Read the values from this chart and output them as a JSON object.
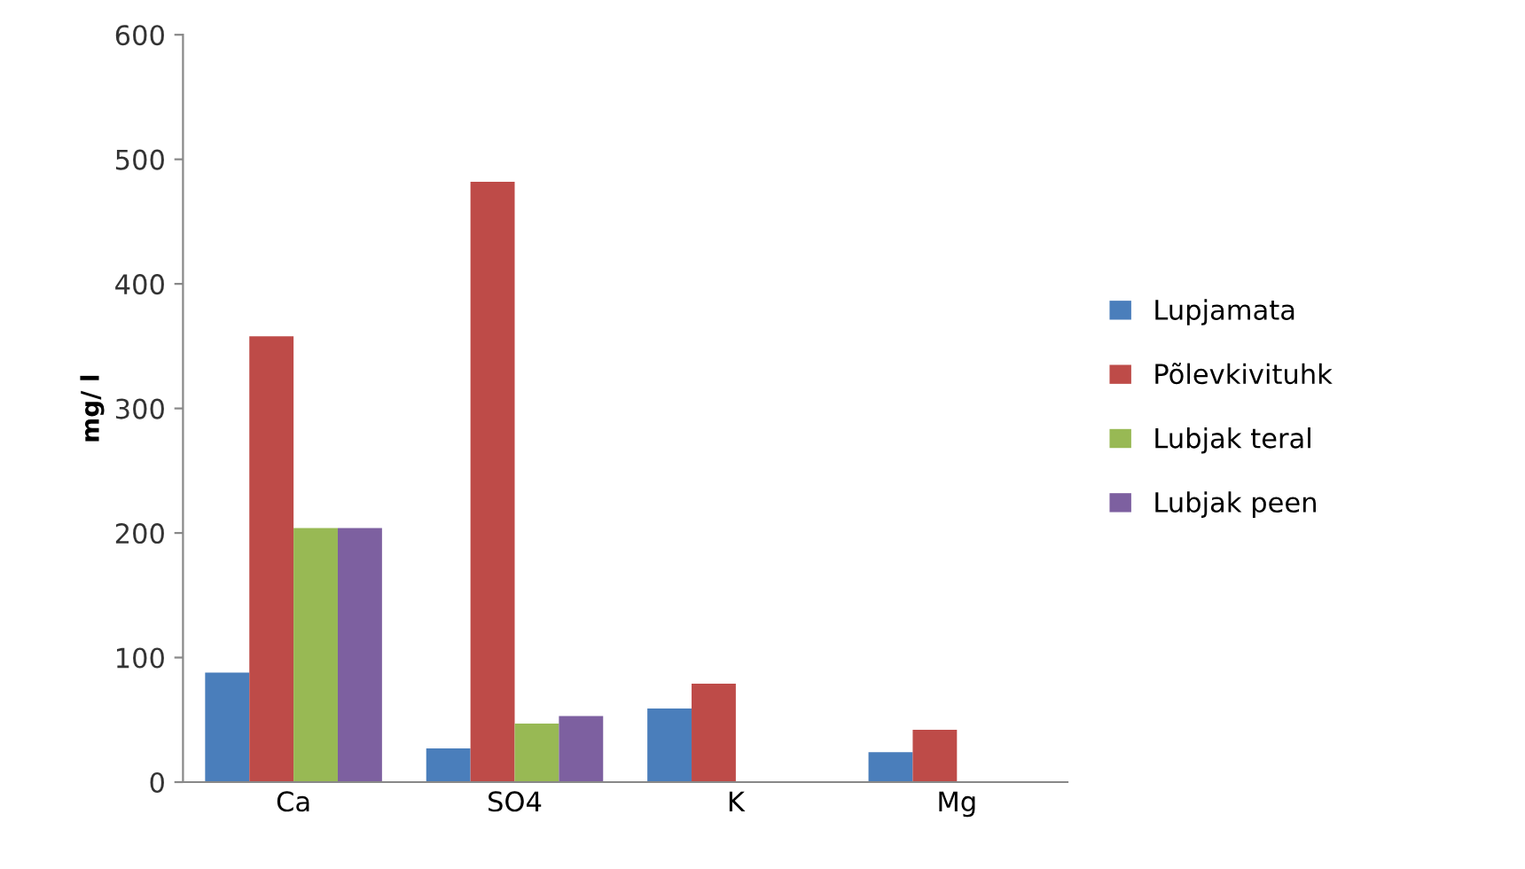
{
  "chart_data": {
    "type": "bar",
    "ylabel": "mg/ l",
    "categories": [
      "Ca",
      "SO4",
      "K",
      "Mg"
    ],
    "series": [
      {
        "name": "Lupjamata",
        "color": "#4a7ebb",
        "values": [
          88,
          27,
          59,
          24
        ]
      },
      {
        "name": "Põlevkivituhk",
        "color": "#be4b48",
        "values": [
          358,
          482,
          79,
          42
        ]
      },
      {
        "name": "Lubjak teral",
        "color": "#98b954",
        "values": [
          204,
          47,
          null,
          null
        ]
      },
      {
        "name": "Lubjak peen",
        "color": "#7d60a0",
        "values": [
          204,
          53,
          null,
          null
        ]
      }
    ],
    "ylim": [
      0,
      600
    ],
    "yticks": [
      0,
      100,
      200,
      300,
      400,
      500,
      600
    ],
    "grid": false,
    "legend": "right"
  }
}
